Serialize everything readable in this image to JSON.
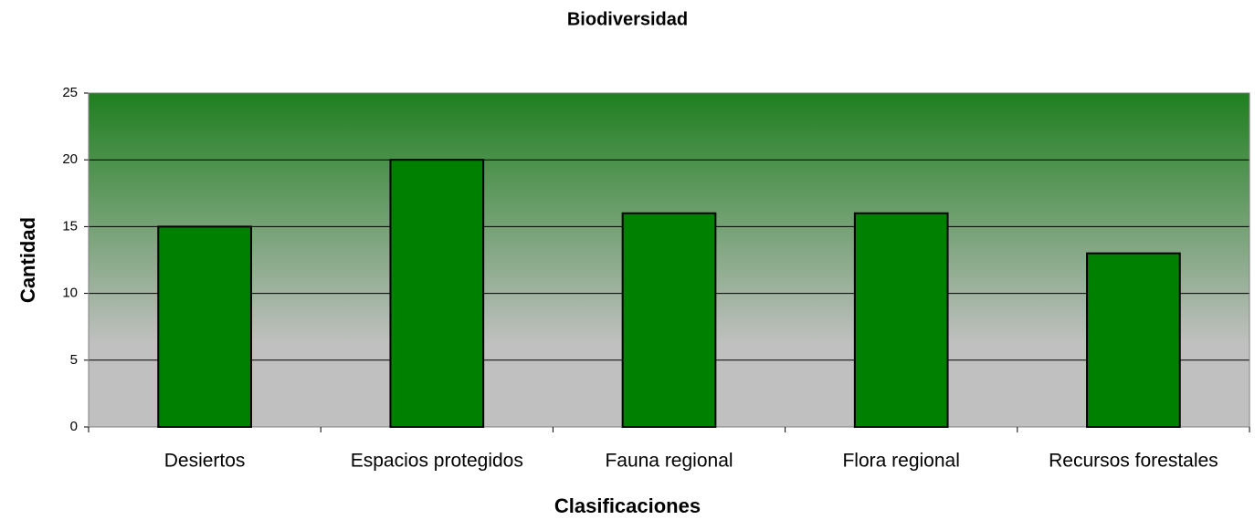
{
  "chart_data": {
    "type": "bar",
    "title": "Biodiversidad",
    "x_label": "Clasificaciones",
    "y_label": "Cantidad",
    "categories": [
      "Desiertos",
      "Espacios protegidos",
      "Fauna regional",
      "Flora regional",
      "Recursos forestales"
    ],
    "values": [
      15,
      20,
      16,
      16,
      13
    ],
    "color": "#008000",
    "ylim": [
      0,
      25
    ],
    "yticks": [
      0,
      5,
      10,
      15,
      20,
      25
    ],
    "grid": true
  }
}
